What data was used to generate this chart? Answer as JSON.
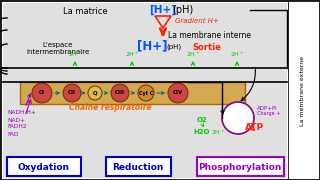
{
  "bg_color": "#1a1a1a",
  "main_bg": "#2a2a2a",
  "white_area": "#e8e8e8",
  "labels": {
    "matrice": "La matrice",
    "membrane_interne": "La membrane interne",
    "membrane_externe": "La membrane externe",
    "espace": "L'espace\nintermembranaire",
    "gradient": "Gradient H+",
    "sortie": "Sortie",
    "chaine": "Chaine respiratoire",
    "nadh": "NADH,H+",
    "nad": "NAD+",
    "fadh2": "FADH2",
    "fad": "FAD",
    "o2": "O2",
    "h2o": "H2O",
    "adppi": "ADP+Pi",
    "atp": "ATP",
    "charge": "Charge +",
    "oxydation": "Oxydation",
    "reduction": "Reduction",
    "phosphorylation": "Phosphorylation"
  },
  "colors": {
    "blue_bracket": "#0055ff",
    "red_gradient": "#ff2200",
    "green_2h": "#00cc00",
    "purple_label": "#9900cc",
    "orange_chain": "#ff6600",
    "dark_arrow": "#111111",
    "box_blue": "#0000cc",
    "box_purple": "#9900cc",
    "chain_bg": "#d4a850",
    "complex_red": "#cc4444",
    "complex_tan": "#d4a850",
    "white": "#ffffff",
    "light_gray": "#cccccc"
  }
}
